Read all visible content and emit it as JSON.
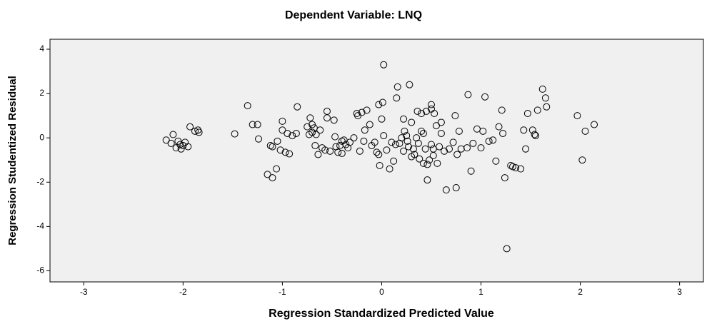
{
  "chart_data": {
    "type": "scatter",
    "title": "Dependent Variable: LNQ",
    "x_label": "Regression Standardized Predicted Value",
    "y_label": "Regression Studentized Residual",
    "xlim": [
      -3.34,
      3.24
    ],
    "ylim": [
      -6.5,
      4.45
    ],
    "xticks": [
      -3,
      -2,
      -1,
      0,
      1,
      2,
      3
    ],
    "yticks": [
      4,
      2,
      0,
      -2,
      -4,
      -6
    ],
    "plot_background": "#f0f0f0",
    "series": [
      {
        "name": null,
        "color": "#000000",
        "x": [
          -2.17,
          -2.12,
          -2.1,
          -2.07,
          -2.05,
          -2.02,
          -2.0,
          -1.98,
          -1.95,
          -1.93,
          -1.88,
          -1.85,
          -1.84,
          -2.03,
          -1.48,
          -1.35,
          -1.3,
          -1.25,
          -1.24,
          -1.15,
          -1.12,
          -1.1,
          -1.1,
          -1.06,
          -1.05,
          -1.02,
          -1.0,
          -1.0,
          -0.97,
          -0.95,
          -0.93,
          -0.9,
          -0.86,
          -0.85,
          -0.75,
          -0.73,
          -0.72,
          -0.7,
          -0.7,
          -0.68,
          -0.67,
          -0.66,
          -0.64,
          -0.62,
          -0.6,
          -0.57,
          -0.55,
          -0.55,
          -0.52,
          -0.48,
          -0.47,
          -0.46,
          -0.44,
          -0.42,
          -0.4,
          -0.4,
          -0.38,
          -0.36,
          -0.34,
          -0.32,
          -0.28,
          -0.25,
          -0.24,
          -0.22,
          -0.2,
          -0.18,
          -0.17,
          -0.15,
          -0.12,
          -0.1,
          -0.07,
          -0.05,
          -0.03,
          -0.03,
          -0.02,
          0.0,
          0.01,
          0.02,
          0.02,
          0.05,
          0.08,
          0.1,
          0.12,
          0.14,
          0.15,
          0.16,
          0.18,
          0.2,
          0.22,
          0.22,
          0.23,
          0.25,
          0.26,
          0.27,
          0.28,
          0.3,
          0.3,
          0.32,
          0.33,
          0.35,
          0.36,
          0.37,
          0.38,
          0.4,
          0.4,
          0.42,
          0.42,
          0.44,
          0.45,
          0.46,
          0.46,
          0.48,
          0.5,
          0.5,
          0.5,
          0.52,
          0.52,
          0.53,
          0.55,
          0.56,
          0.58,
          0.6,
          0.6,
          0.63,
          0.65,
          0.68,
          0.72,
          0.74,
          0.75,
          0.76,
          0.78,
          0.8,
          0.86,
          0.87,
          0.9,
          0.92,
          0.96,
          1.0,
          1.02,
          1.04,
          1.08,
          1.12,
          1.15,
          1.18,
          1.21,
          1.22,
          1.24,
          1.26,
          1.3,
          1.32,
          1.35,
          1.4,
          1.43,
          1.45,
          1.47,
          1.52,
          1.54,
          1.55,
          1.57,
          1.62,
          1.65,
          1.66,
          1.97,
          2.02,
          2.05,
          2.14
        ],
        "values": [
          -0.1,
          -0.25,
          0.15,
          -0.45,
          -0.15,
          -0.5,
          -0.35,
          -0.2,
          -0.4,
          0.5,
          0.3,
          0.35,
          0.25,
          -0.3,
          0.18,
          1.45,
          0.6,
          0.6,
          -0.05,
          -1.65,
          -0.35,
          -1.8,
          -0.4,
          -1.4,
          -0.15,
          -0.55,
          0.75,
          0.35,
          -0.65,
          0.2,
          -0.72,
          0.1,
          0.2,
          1.4,
          0.5,
          0.15,
          0.9,
          0.6,
          0.25,
          0.45,
          -0.35,
          0.15,
          -0.75,
          0.35,
          -0.45,
          -0.55,
          1.2,
          0.9,
          -0.6,
          0.8,
          0.05,
          -0.4,
          -0.65,
          -0.35,
          -0.15,
          -0.7,
          -0.1,
          -0.3,
          -0.45,
          -0.2,
          0.0,
          1.1,
          1.0,
          -0.6,
          1.15,
          -0.15,
          0.35,
          1.25,
          0.6,
          -0.35,
          -0.2,
          -0.65,
          -0.75,
          1.5,
          -1.25,
          0.85,
          1.6,
          0.1,
          3.3,
          -0.55,
          -1.4,
          -0.2,
          -1.05,
          -0.3,
          1.8,
          2.3,
          -0.25,
          0.0,
          -0.6,
          0.85,
          0.3,
          0.1,
          -0.15,
          -0.4,
          2.4,
          -0.85,
          0.7,
          -0.5,
          -0.75,
          0.0,
          1.2,
          -0.25,
          -0.95,
          1.1,
          0.3,
          -1.15,
          0.2,
          -0.5,
          1.2,
          -1.2,
          -1.9,
          -1.0,
          1.5,
          1.3,
          -0.3,
          -0.8,
          -0.5,
          1.1,
          0.55,
          -1.15,
          -0.4,
          0.2,
          0.7,
          -0.6,
          -2.35,
          -0.5,
          -0.2,
          1.0,
          -2.25,
          -0.75,
          0.3,
          -0.5,
          -0.45,
          1.95,
          -1.5,
          -0.25,
          0.4,
          -0.45,
          0.3,
          1.85,
          -0.15,
          -0.1,
          -1.05,
          0.5,
          1.25,
          0.2,
          -1.8,
          -5.0,
          -1.25,
          -1.3,
          -1.35,
          -1.4,
          0.35,
          -0.5,
          1.1,
          0.35,
          0.15,
          0.1,
          1.25,
          2.2,
          1.8,
          1.4,
          1.0,
          -1.0,
          0.3,
          0.6
        ]
      }
    ]
  }
}
